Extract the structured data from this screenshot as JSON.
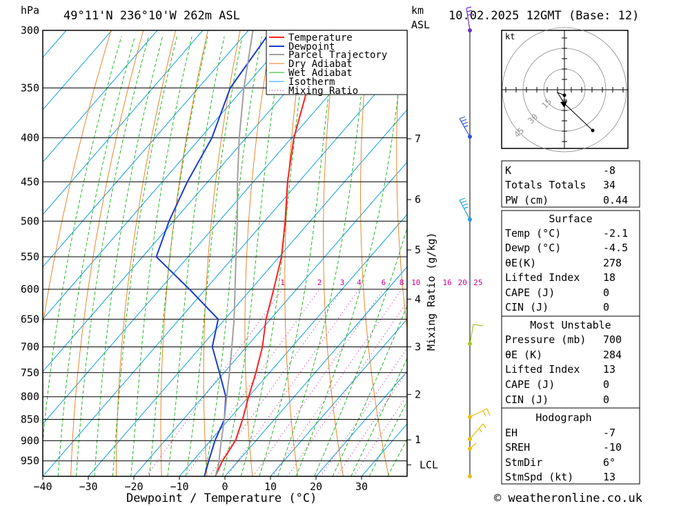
{
  "header": {
    "unit_hpa": "hPa",
    "location": "49°11'N 236°10'W 262m ASL",
    "unit_km": "km",
    "unit_asl": "ASL",
    "datetime": "10.02.2025 12GMT (Base: 12)"
  },
  "footer": {
    "copyright": "© weatheronline.co.uk"
  },
  "colors": {
    "temperature": "#ff2020",
    "dewpoint": "#1a3ad0",
    "parcel": "#a0a0a0",
    "dry_adiabat": "#e87814",
    "wet_adiabat": "#10b010",
    "isotherm": "#10a0e0",
    "mixing_ratio": "#c8008c",
    "wind": "#3050e0"
  },
  "chart_data": {
    "type": "skew-t log-p",
    "xlabel": "Dewpoint / Temperature (°C)",
    "ylabel": "hPa",
    "mixing_ratio_label": "Mixing Ratio (g/kg)",
    "x_ticks": [
      -40,
      -30,
      -20,
      -10,
      0,
      10,
      20,
      30
    ],
    "pressure_ticks": [
      300,
      350,
      400,
      450,
      500,
      550,
      600,
      650,
      700,
      750,
      800,
      850,
      900,
      950
    ],
    "pressure_range": [
      300,
      990
    ],
    "temperature_range": [
      -40,
      40
    ],
    "height_ticks_km": [
      {
        "label": "7",
        "p": 401
      },
      {
        "label": "6",
        "p": 472
      },
      {
        "label": "5",
        "p": 540
      },
      {
        "label": "4",
        "p": 616
      },
      {
        "label": "3",
        "p": 700
      },
      {
        "label": "2",
        "p": 795
      },
      {
        "label": "1",
        "p": 898
      },
      {
        "label": "LCL",
        "p": 960
      }
    ],
    "mixing_ratio_values": [
      "1",
      "2",
      "3",
      "4",
      "6",
      "8",
      "10",
      "16",
      "20",
      "25"
    ],
    "legend": [
      "Temperature",
      "Dewpoint",
      "Parcel Trajectory",
      "Dry Adiabat",
      "Wet Adiabat",
      "Isotherm",
      "Mixing Ratio"
    ],
    "series": [
      {
        "name": "Temperature",
        "points": [
          [
            990,
            -2.1
          ],
          [
            950,
            -3.5
          ],
          [
            900,
            -4.5
          ],
          [
            850,
            -7.0
          ],
          [
            800,
            -10.0
          ],
          [
            750,
            -13.0
          ],
          [
            700,
            -16.5
          ],
          [
            650,
            -21.0
          ],
          [
            600,
            -25.0
          ],
          [
            550,
            -29.5
          ],
          [
            500,
            -35.5
          ],
          [
            450,
            -42.5
          ],
          [
            400,
            -49.5
          ],
          [
            350,
            -56.0
          ],
          [
            300,
            -60.5
          ]
        ]
      },
      {
        "name": "Dewpoint",
        "points": [
          [
            990,
            -4.5
          ],
          [
            950,
            -6.5
          ],
          [
            900,
            -9.0
          ],
          [
            850,
            -11.0
          ],
          [
            800,
            -15.0
          ],
          [
            750,
            -21.0
          ],
          [
            700,
            -27.5
          ],
          [
            650,
            -31.5
          ],
          [
            600,
            -43.5
          ],
          [
            550,
            -57.0
          ],
          [
            500,
            -61.0
          ],
          [
            450,
            -64.5
          ],
          [
            400,
            -67.5
          ],
          [
            350,
            -73.0
          ],
          [
            300,
            -75.0
          ]
        ]
      },
      {
        "name": "Parcel Trajectory",
        "points": [
          [
            990,
            -2.1
          ],
          [
            960,
            -3.6
          ],
          [
            900,
            -7.6
          ],
          [
            850,
            -11.0
          ],
          [
            800,
            -14.8
          ],
          [
            750,
            -18.8
          ],
          [
            700,
            -23.2
          ],
          [
            650,
            -28.0
          ],
          [
            600,
            -33.5
          ],
          [
            550,
            -39.5
          ],
          [
            500,
            -46.0
          ],
          [
            450,
            -53.5
          ],
          [
            400,
            -61.5
          ],
          [
            350,
            -70.0
          ],
          [
            300,
            -79.0
          ]
        ]
      }
    ]
  },
  "hodograph": {
    "unit": "kt",
    "ring_labels": [
      "15",
      "30",
      "45"
    ]
  },
  "indices": {
    "k_label": "K",
    "k": "-8",
    "tt_label": "Totals Totals",
    "tt": "34",
    "pw_label": "PW (cm)",
    "pw": "0.44"
  },
  "surface": {
    "title": "Surface",
    "temp_label": "Temp (°C)",
    "temp": "-2.1",
    "dewp_label": "Dewp (°C)",
    "dewp": "-4.5",
    "theta_label": "θE(K)",
    "theta": "278",
    "li_label": "Lifted Index",
    "li": "18",
    "cape_label": "CAPE (J)",
    "cape": "0",
    "cin_label": "CIN (J)",
    "cin": "0"
  },
  "most_unstable": {
    "title": "Most Unstable",
    "pressure_label": "Pressure (mb)",
    "pressure": "700",
    "theta_label": "θE (K)",
    "theta": "284",
    "li_label": "Lifted Index",
    "li": "13",
    "cape_label": "CAPE (J)",
    "cape": "0",
    "cin_label": "CIN (J)",
    "cin": "0"
  },
  "hodograph_table": {
    "title": "Hodograph",
    "eh_label": "EH",
    "eh": "-7",
    "sreh_label": "SREH",
    "sreh": "-10",
    "stmdir_label": "StmDir",
    "stmdir": "6°",
    "stmspd_label": "StmSpd (kt)",
    "stmspd": "13"
  }
}
